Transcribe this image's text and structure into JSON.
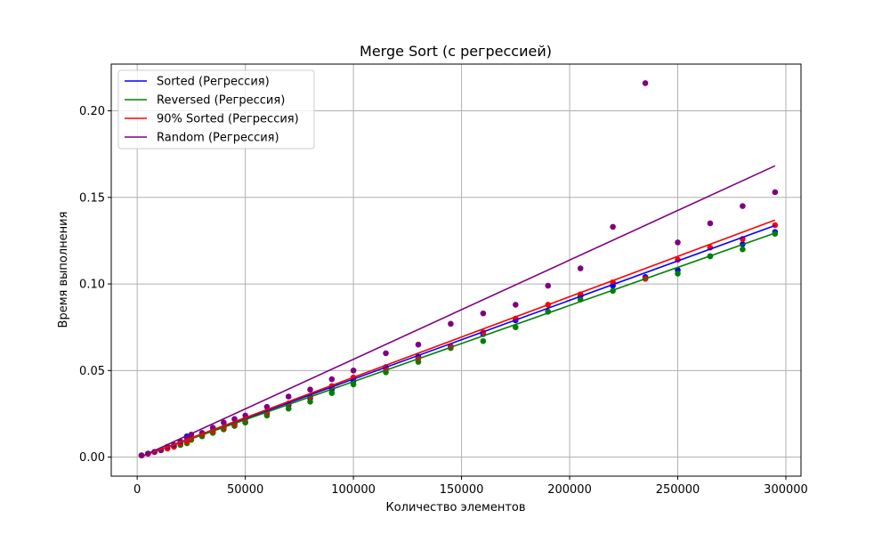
{
  "chart_data": {
    "type": "scatter",
    "title": "Merge Sort (с регрессией)",
    "xlabel": "Количество элементов",
    "ylabel": "Время выполнения",
    "xlim": [
      -12000,
      307000
    ],
    "ylim": [
      -0.011,
      0.227
    ],
    "xticks": [
      0,
      50000,
      100000,
      150000,
      200000,
      250000,
      300000
    ],
    "xtick_labels": [
      "0",
      "50000",
      "100000",
      "150000",
      "200000",
      "250000",
      "300000"
    ],
    "yticks": [
      0.0,
      0.05,
      0.1,
      0.15,
      0.2
    ],
    "ytick_labels": [
      "0.00",
      "0.05",
      "0.10",
      "0.15",
      "0.20"
    ],
    "grid": true,
    "legend_position": "top-left",
    "x": [
      2000,
      5000,
      8000,
      11000,
      14000,
      17000,
      20000,
      23000,
      25000,
      30000,
      35000,
      40000,
      45000,
      50000,
      60000,
      70000,
      80000,
      90000,
      100000,
      115000,
      130000,
      145000,
      160000,
      175000,
      190000,
      205000,
      220000,
      235000,
      250000,
      265000,
      280000,
      295000
    ],
    "series": [
      {
        "name": "Sorted (Регрессия)",
        "color": "#0000ff",
        "points": [
          0.001,
          0.002,
          0.003,
          0.004,
          0.005,
          0.006,
          0.008,
          0.012,
          0.011,
          0.013,
          0.015,
          0.017,
          0.019,
          0.02,
          0.025,
          0.03,
          0.034,
          0.039,
          0.044,
          0.052,
          0.058,
          0.064,
          0.071,
          0.079,
          0.084,
          0.093,
          0.099,
          0.104,
          0.108,
          0.116,
          0.123,
          0.13
        ],
        "regression": [
          0.000455,
          -0.00045
        ]
      },
      {
        "name": "Reversed (Регрессия)",
        "color": "#008000",
        "points": [
          0.001,
          0.002,
          0.003,
          0.004,
          0.005,
          0.006,
          0.007,
          0.008,
          0.01,
          0.012,
          0.014,
          0.016,
          0.018,
          0.02,
          0.024,
          0.028,
          0.032,
          0.037,
          0.042,
          0.049,
          0.055,
          0.063,
          0.067,
          0.075,
          0.084,
          0.091,
          0.096,
          0.103,
          0.106,
          0.116,
          0.12,
          0.129
        ],
        "regression": [
          0.00044,
          -0.0004
        ]
      },
      {
        "name": "90% Sorted (Регрессия)",
        "color": "#ff0000",
        "points": [
          0.001,
          0.002,
          0.003,
          0.004,
          0.005,
          0.006,
          0.008,
          0.009,
          0.011,
          0.013,
          0.015,
          0.017,
          0.019,
          0.022,
          0.026,
          0.031,
          0.035,
          0.041,
          0.046,
          0.051,
          0.057,
          0.064,
          0.072,
          0.08,
          0.088,
          0.094,
          0.101,
          0.103,
          0.114,
          0.121,
          0.126,
          0.134
        ],
        "regression": [
          0.000466,
          -0.00055
        ]
      },
      {
        "name": "Random (Регрессия)",
        "color": "#800080",
        "points": [
          0.001,
          0.002,
          0.003,
          0.004,
          0.006,
          0.007,
          0.009,
          0.011,
          0.013,
          0.014,
          0.017,
          0.02,
          0.022,
          0.024,
          0.029,
          0.035,
          0.039,
          0.045,
          0.05,
          0.06,
          0.065,
          0.077,
          0.083,
          0.088,
          0.099,
          0.109,
          0.133,
          0.216,
          0.124,
          0.135,
          0.145,
          0.153
        ],
        "regression": [
          0.000573,
          -0.0008
        ]
      }
    ]
  }
}
